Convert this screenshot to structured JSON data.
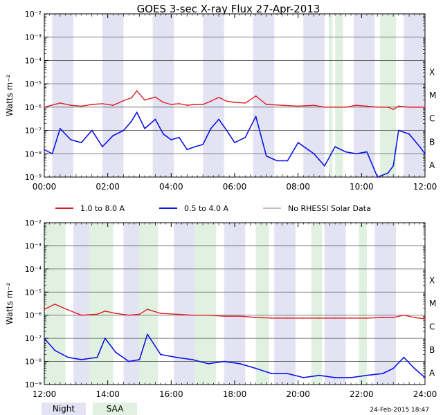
{
  "title": "GOES 3-sec X-ray Flux   27-Apr-2013",
  "footer_timestamp": "24-Feb-2015 18:47",
  "colors": {
    "long_channel": "#e02020",
    "short_channel": "#0a14e6",
    "no_rhessi": "#9a9a9a",
    "night": "#e3e3f3",
    "saa": "#e1f1e1",
    "grid": "#555555"
  },
  "legend": {
    "long_label": "1.0 to 8.0 A",
    "short_label": "0.5 to 4.0 A",
    "no_data_label": "No RHESSI Solar Data",
    "night_label": "Night",
    "saa_label": "SAA"
  },
  "chart_data": [
    {
      "type": "line",
      "ylabel": "Watts m⁻²",
      "yscale": "log",
      "ylim": [
        1e-09,
        0.01
      ],
      "xlim": [
        "00:00",
        "12:00"
      ],
      "x_ticks": [
        "00:00",
        "02:00",
        "04:00",
        "06:00",
        "08:00",
        "10:00",
        "12:00"
      ],
      "y_ticks": [
        "10⁻⁹",
        "10⁻⁸",
        "10⁻⁷",
        "10⁻⁶",
        "10⁻⁵",
        "10⁻⁴",
        "10⁻³",
        "10⁻²"
      ],
      "flare_classes": [
        "A",
        "B",
        "C",
        "M",
        "X"
      ],
      "night_bands": [
        [
          "00:15",
          "00:55"
        ],
        [
          "01:50",
          "02:30"
        ],
        [
          "03:25",
          "04:05"
        ],
        [
          "05:00",
          "05:40"
        ],
        [
          "06:35",
          "07:15"
        ],
        [
          "08:10",
          "08:50"
        ],
        [
          "09:45",
          "10:25"
        ],
        [
          "11:20",
          "12:00"
        ]
      ],
      "saa_bands": [
        [
          "08:58",
          "09:05"
        ],
        [
          "09:10",
          "09:25"
        ],
        [
          "10:35",
          "11:05"
        ]
      ],
      "series": [
        {
          "name": "1.0 to 8.0 A",
          "channel": "long",
          "x": [
            "00:00",
            "00:30",
            "00:50",
            "01:10",
            "01:30",
            "01:50",
            "02:10",
            "02:30",
            "02:45",
            "02:55",
            "03:10",
            "03:30",
            "03:45",
            "04:00",
            "04:15",
            "04:30",
            "04:45",
            "05:00",
            "05:15",
            "05:30",
            "05:45",
            "06:00",
            "06:20",
            "06:40",
            "07:00",
            "07:30",
            "08:00",
            "08:30",
            "08:50",
            "09:10",
            "09:30",
            "09:50",
            "10:10",
            "10:30",
            "10:50",
            "11:00",
            "11:10",
            "11:30",
            "11:50",
            "12:00"
          ],
          "y": [
            1e-06,
            1.5e-06,
            1.2e-06,
            1.1e-06,
            1.3e-06,
            1.4e-06,
            1.2e-06,
            1.9e-06,
            2.5e-06,
            5e-06,
            2e-06,
            2.7e-06,
            1.6e-06,
            1.3e-06,
            1.4e-06,
            1.2e-06,
            1.3e-06,
            1.3e-06,
            1.8e-06,
            2.6e-06,
            1.8e-06,
            1.6e-06,
            1.5e-06,
            3e-06,
            1.3e-06,
            1.2e-06,
            1.1e-06,
            1.2e-06,
            1e-06,
            1e-06,
            1e-06,
            1.2e-06,
            1.1e-06,
            1e-06,
            1e-06,
            8e-07,
            1.1e-06,
            1e-06,
            1e-06,
            1e-06
          ]
        },
        {
          "name": "0.5 to 4.0 A",
          "channel": "short",
          "x": [
            "00:00",
            "00:15",
            "00:30",
            "00:50",
            "01:10",
            "01:30",
            "01:50",
            "02:10",
            "02:30",
            "02:45",
            "02:55",
            "03:10",
            "03:30",
            "03:45",
            "04:00",
            "04:15",
            "04:30",
            "04:45",
            "05:00",
            "05:15",
            "05:30",
            "05:45",
            "06:00",
            "06:20",
            "06:40",
            "07:00",
            "07:20",
            "07:40",
            "08:00",
            "08:30",
            "08:50",
            "09:10",
            "09:30",
            "09:50",
            "10:10",
            "10:30",
            "10:50",
            "11:00",
            "11:10",
            "11:30",
            "11:50",
            "12:00"
          ],
          "y": [
            1.5e-08,
            1e-08,
            1.2e-07,
            4e-08,
            3e-08,
            1e-07,
            2e-08,
            6e-08,
            1e-07,
            2.5e-07,
            6e-07,
            1.2e-07,
            3e-07,
            7e-08,
            4e-08,
            5e-08,
            1.5e-08,
            2e-08,
            2.5e-08,
            1.2e-07,
            3e-07,
            1e-07,
            3e-08,
            5e-08,
            4e-07,
            8e-09,
            5e-09,
            5e-09,
            3e-08,
            1e-08,
            3e-09,
            2e-08,
            1.2e-08,
            1e-08,
            1.2e-08,
            1e-09,
            1.5e-09,
            3e-09,
            1e-07,
            7e-08,
            2e-08,
            1e-08
          ]
        }
      ]
    },
    {
      "type": "line",
      "ylabel": "Watts m⁻²",
      "yscale": "log",
      "ylim": [
        1e-09,
        0.01
      ],
      "xlim": [
        "12:00",
        "24:00"
      ],
      "x_ticks": [
        "12:00",
        "14:00",
        "16:00",
        "18:00",
        "20:00",
        "22:00",
        "24:00"
      ],
      "y_ticks": [
        "10⁻⁹",
        "10⁻⁸",
        "10⁻⁷",
        "10⁻⁶",
        "10⁻⁵",
        "10⁻⁴",
        "10⁻³",
        "10⁻²"
      ],
      "flare_classes": [
        "A",
        "B",
        "C",
        "M",
        "X"
      ],
      "night_bands": [
        [
          "12:55",
          "13:35"
        ],
        [
          "14:30",
          "15:10"
        ],
        [
          "16:05",
          "16:45"
        ],
        [
          "17:40",
          "18:20"
        ],
        [
          "19:15",
          "19:55"
        ],
        [
          "20:50",
          "21:30"
        ],
        [
          "22:25",
          "23:05"
        ]
      ],
      "saa_bands": [
        [
          "12:00",
          "12:40"
        ],
        [
          "13:25",
          "14:10"
        ],
        [
          "15:00",
          "15:35"
        ],
        [
          "16:45",
          "17:25"
        ],
        [
          "18:40",
          "19:05"
        ],
        [
          "20:25",
          "20:45"
        ],
        [
          "21:55",
          "22:10"
        ]
      ],
      "series": [
        {
          "name": "1.0 to 8.0 A",
          "channel": "long",
          "x": [
            "12:00",
            "12:20",
            "12:45",
            "13:10",
            "13:40",
            "13:55",
            "14:15",
            "14:40",
            "15:00",
            "15:15",
            "15:40",
            "16:10",
            "16:40",
            "17:10",
            "17:40",
            "18:10",
            "18:40",
            "19:10",
            "19:40",
            "20:10",
            "20:40",
            "21:10",
            "21:40",
            "22:10",
            "22:40",
            "23:00",
            "23:20",
            "23:40",
            "24:00"
          ],
          "y": [
            1.8e-06,
            3e-06,
            1.7e-06,
            1e-06,
            1.1e-06,
            1.5e-06,
            1.2e-06,
            1e-06,
            1.1e-06,
            1.8e-06,
            1.2e-06,
            1.1e-06,
            1e-06,
            1e-06,
            9e-07,
            9e-07,
            8e-07,
            7.5e-07,
            7.5e-07,
            7.5e-07,
            7.5e-07,
            7.5e-07,
            7.5e-07,
            7.5e-07,
            8e-07,
            8e-07,
            1e-06,
            8e-07,
            7e-07
          ]
        },
        {
          "name": "0.5 to 4.0 A",
          "channel": "short",
          "x": [
            "12:00",
            "12:20",
            "12:45",
            "13:10",
            "13:40",
            "13:55",
            "14:15",
            "14:40",
            "15:00",
            "15:15",
            "15:40",
            "16:10",
            "16:40",
            "17:10",
            "17:40",
            "18:10",
            "18:40",
            "19:10",
            "19:40",
            "20:10",
            "20:40",
            "21:10",
            "21:40",
            "22:10",
            "22:40",
            "23:00",
            "23:20",
            "23:40",
            "24:00"
          ],
          "y": [
            1e-07,
            3e-08,
            1.5e-08,
            1.2e-08,
            1.5e-08,
            1e-07,
            2.5e-08,
            1e-08,
            1.2e-08,
            1.5e-07,
            2e-08,
            1.5e-08,
            1.2e-08,
            8e-09,
            1e-08,
            8e-09,
            5e-09,
            3e-09,
            3e-09,
            2e-09,
            2.5e-09,
            2e-09,
            2e-09,
            2.5e-09,
            3e-09,
            5e-09,
            1.5e-08,
            5e-09,
            2e-09
          ]
        }
      ]
    }
  ]
}
